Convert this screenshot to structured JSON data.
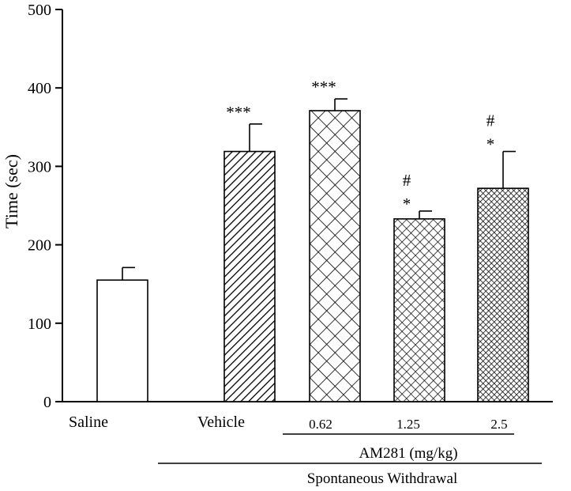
{
  "chart_data": {
    "type": "bar",
    "ylabel": "Time (sec)",
    "xlabel": "",
    "ylim": [
      0,
      500
    ],
    "yticks": [
      0,
      100,
      200,
      300,
      400,
      500
    ],
    "grid": false,
    "legend": "none",
    "categories": [
      "Saline",
      "Vehicle",
      "0.62",
      "1.25",
      "2.5"
    ],
    "values": [
      155,
      319,
      371,
      233,
      272
    ],
    "errors": [
      16,
      35,
      15,
      10,
      47
    ],
    "patterns": [
      "none",
      "diagonal",
      "cross-wide",
      "cross-fine",
      "cross-dense"
    ],
    "annotations": [
      {
        "category": "Vehicle",
        "lines": [
          "***"
        ]
      },
      {
        "category": "0.62",
        "lines": [
          "***"
        ]
      },
      {
        "category": "1.25",
        "lines": [
          "#",
          "*"
        ]
      },
      {
        "category": "2.5",
        "lines": [
          "#",
          "*"
        ]
      }
    ],
    "groups": {
      "am281": {
        "label": "AM281 (mg/kg)",
        "from": "0.62",
        "to": "2.5"
      },
      "withdrawal": {
        "label": "Spontaneous Withdrawal",
        "from": "Vehicle",
        "to": "2.5"
      }
    }
  }
}
